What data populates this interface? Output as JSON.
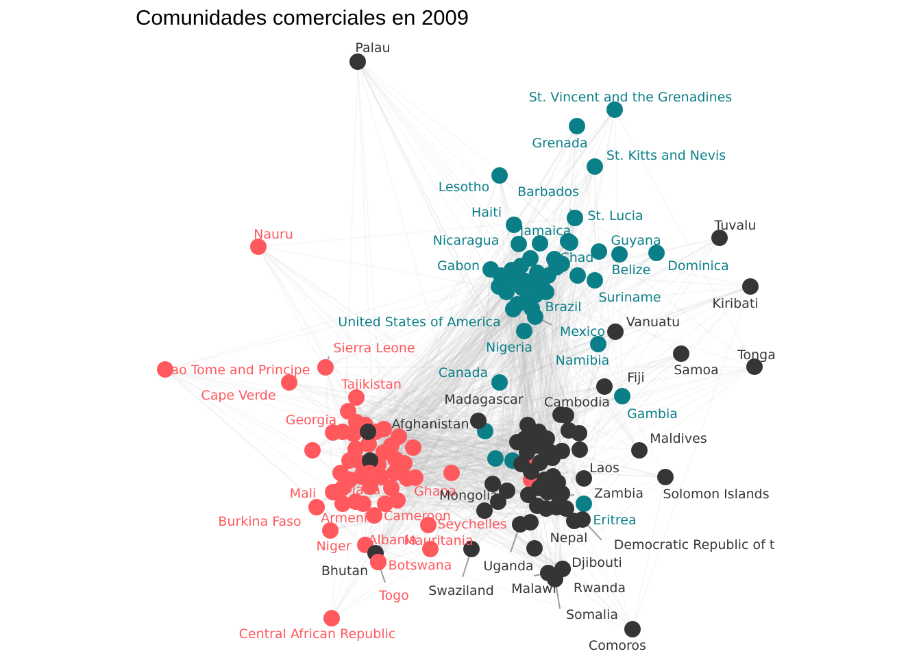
{
  "title": "Comunidades comerciales en 2009",
  "colors": {
    "red": "#FF585D",
    "teal": "#0B7F88",
    "dark": "#353535",
    "edge": "#BDBDBD"
  },
  "nodes": [
    {
      "id": "palau",
      "label": "Palau",
      "c": "dark"
    },
    {
      "id": "nauru",
      "label": "Nauru",
      "c": "red"
    },
    {
      "id": "svg",
      "label": "St. Vincent and the Grenadines",
      "c": "teal"
    },
    {
      "id": "grenada",
      "label": "Grenada",
      "c": "teal"
    },
    {
      "id": "skn",
      "label": "St. Kitts and Nevis",
      "c": "teal"
    },
    {
      "id": "lesotho",
      "label": "Lesotho",
      "c": "teal"
    },
    {
      "id": "barbados",
      "label": "Barbados",
      "c": "teal"
    },
    {
      "id": "haiti",
      "label": "Haiti",
      "c": "teal"
    },
    {
      "id": "stlucia",
      "label": "St. Lucia",
      "c": "teal"
    },
    {
      "id": "jamaica",
      "label": "Jamaica",
      "c": "teal"
    },
    {
      "id": "nicaragua",
      "label": "Nicaragua",
      "c": "teal"
    },
    {
      "id": "guyana",
      "label": "Guyana",
      "c": "teal"
    },
    {
      "id": "tuvalu",
      "label": "Tuvalu",
      "c": "dark"
    },
    {
      "id": "dominica",
      "label": "Dominica",
      "c": "teal"
    },
    {
      "id": "gabon",
      "label": "Gabon",
      "c": "teal"
    },
    {
      "id": "chad",
      "label": "Chad",
      "c": "teal"
    },
    {
      "id": "belize",
      "label": "Belize",
      "c": "teal"
    },
    {
      "id": "kiribati",
      "label": "Kiribati",
      "c": "dark"
    },
    {
      "id": "suriname",
      "label": "Suriname",
      "c": "teal"
    },
    {
      "id": "brazil",
      "label": "Brazil",
      "c": "teal"
    },
    {
      "id": "usa",
      "label": "United States of America",
      "c": "teal"
    },
    {
      "id": "mexico",
      "label": "Mexico",
      "c": "teal"
    },
    {
      "id": "vanuatu",
      "label": "Vanuatu",
      "c": "dark"
    },
    {
      "id": "nigeria",
      "label": "Nigeria",
      "c": "teal"
    },
    {
      "id": "namibia",
      "label": "Namibia",
      "c": "teal"
    },
    {
      "id": "tonga",
      "label": "Tonga",
      "c": "dark"
    },
    {
      "id": "samoa",
      "label": "Samoa",
      "c": "dark"
    },
    {
      "id": "sierraleone",
      "label": "Sierra Leone",
      "c": "red"
    },
    {
      "id": "stp",
      "label": "Sao Tome and Principe",
      "c": "red"
    },
    {
      "id": "canada",
      "label": "Canada",
      "c": "teal"
    },
    {
      "id": "fiji",
      "label": "Fiji",
      "c": "dark"
    },
    {
      "id": "tajikistan",
      "label": "Tajikistan",
      "c": "red"
    },
    {
      "id": "capeverde",
      "label": "Cape Verde",
      "c": "red"
    },
    {
      "id": "madagascar",
      "label": "Madagascar",
      "c": "dark"
    },
    {
      "id": "cambodia",
      "label": "Cambodia",
      "c": "dark"
    },
    {
      "id": "gambia",
      "label": "Gambia",
      "c": "teal"
    },
    {
      "id": "georgia",
      "label": "Georgia",
      "c": "red"
    },
    {
      "id": "afghanistan",
      "label": "Afghanistan",
      "c": "dark"
    },
    {
      "id": "maldives",
      "label": "Maldives",
      "c": "dark"
    },
    {
      "id": "laos",
      "label": "Laos",
      "c": "dark"
    },
    {
      "id": "solomon",
      "label": "Solomon Islands",
      "c": "dark"
    },
    {
      "id": "mali",
      "label": "Mali",
      "c": "red"
    },
    {
      "id": "malta",
      "label": "Malta",
      "c": "red"
    },
    {
      "id": "ghana",
      "label": "Ghana",
      "c": "red"
    },
    {
      "id": "mongolia",
      "label": "Mongolia",
      "c": "dark"
    },
    {
      "id": "zambia",
      "label": "Zambia",
      "c": "dark"
    },
    {
      "id": "eritrea",
      "label": "Eritrea",
      "c": "teal"
    },
    {
      "id": "burkinafaso",
      "label": "Burkina Faso",
      "c": "red"
    },
    {
      "id": "armenia",
      "label": "Armenia",
      "c": "red"
    },
    {
      "id": "cameroon",
      "label": "Cameroon",
      "c": "red"
    },
    {
      "id": "seychelles",
      "label": "Seychelles",
      "c": "red"
    },
    {
      "id": "drc",
      "label": "Democratic Republic of t",
      "c": "dark"
    },
    {
      "id": "niger",
      "label": "Niger",
      "c": "red"
    },
    {
      "id": "albania",
      "label": "Albania",
      "c": "red"
    },
    {
      "id": "mauritania",
      "label": "Mauritania",
      "c": "red"
    },
    {
      "id": "nepal",
      "label": "Nepal",
      "c": "dark"
    },
    {
      "id": "bhutan",
      "label": "Bhutan",
      "c": "dark"
    },
    {
      "id": "botswana",
      "label": "Botswana",
      "c": "red"
    },
    {
      "id": "uganda",
      "label": "Uganda",
      "c": "dark"
    },
    {
      "id": "djibouti",
      "label": "Djibouti",
      "c": "dark"
    },
    {
      "id": "swaziland",
      "label": "Swaziland",
      "c": "dark"
    },
    {
      "id": "malawi",
      "label": "Malawi",
      "c": "dark"
    },
    {
      "id": "rwanda",
      "label": "Rwanda",
      "c": "dark"
    },
    {
      "id": "togo",
      "label": "Togo",
      "c": "red"
    },
    {
      "id": "somalia",
      "label": "Somalia",
      "c": "dark"
    },
    {
      "id": "car",
      "label": "Central African Republic",
      "c": "red"
    },
    {
      "id": "comoros",
      "label": "Comoros",
      "c": "dark"
    }
  ]
}
